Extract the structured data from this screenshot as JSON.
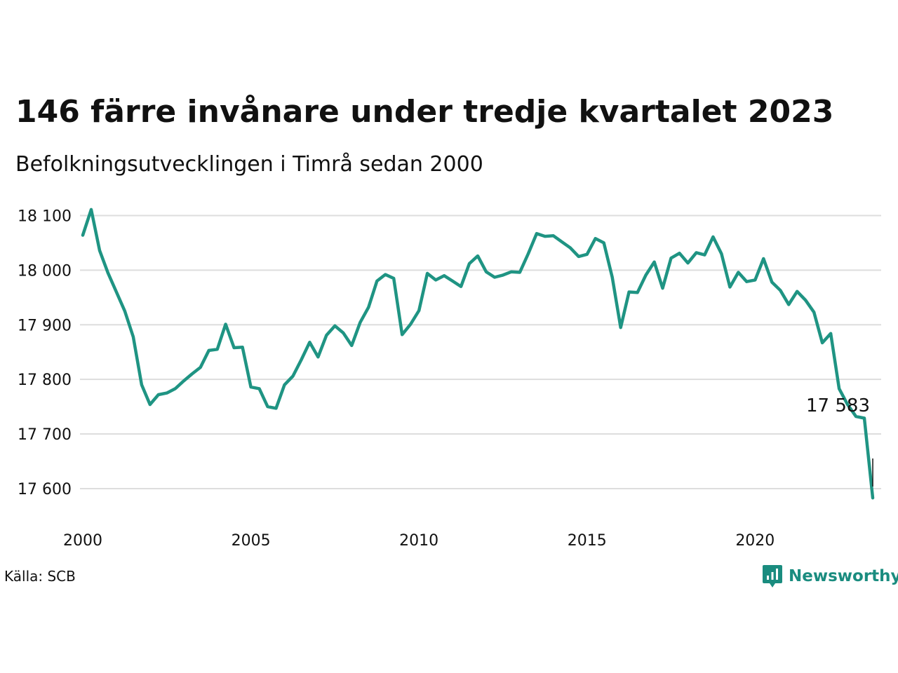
{
  "header": {
    "title": "146 färre invånare under tredje kvartalet 2023",
    "subtitle": "Befolkningsutvecklingen i Timrå sedan 2000"
  },
  "footer": {
    "source": "Källa: SCB",
    "brand": "Newsworthy",
    "brand_icon": "bar-chart-badge-icon"
  },
  "colors": {
    "line": "#1f9483",
    "grid": "#dddddd",
    "brand": "#1a8c7f"
  },
  "chart_data": {
    "type": "line",
    "title": "146 färre invånare under tredje kvartalet 2023",
    "subtitle": "Befolkningsutvecklingen i Timrå sedan 2000",
    "xlabel": "",
    "ylabel": "",
    "x_ticks": [
      "2000",
      "2005",
      "2010",
      "2015",
      "2020"
    ],
    "y_ticks": [
      "17 600",
      "17 700",
      "17 800",
      "17 900",
      "18 000",
      "18 100"
    ],
    "y_tick_values": [
      17600,
      17700,
      17800,
      17900,
      18000,
      18100
    ],
    "xlim": [
      2000,
      2023.75
    ],
    "ylim": [
      17555,
      18125
    ],
    "grid": true,
    "end_label": "17 583",
    "series": [
      {
        "x": [
          "2000-Q1",
          "2000-Q2",
          "2000-Q3",
          "2000-Q4",
          "2001-Q1",
          "2001-Q2",
          "2001-Q3",
          "2001-Q4",
          "2002-Q1",
          "2002-Q2",
          "2002-Q3",
          "2002-Q4",
          "2003-Q1",
          "2003-Q2",
          "2003-Q3",
          "2003-Q4",
          "2004-Q1",
          "2004-Q2",
          "2004-Q3",
          "2004-Q4",
          "2005-Q1",
          "2005-Q2",
          "2005-Q3",
          "2005-Q4",
          "2006-Q1",
          "2006-Q2",
          "2006-Q3",
          "2006-Q4",
          "2007-Q1",
          "2007-Q2",
          "2007-Q3",
          "2007-Q4",
          "2008-Q1",
          "2008-Q2",
          "2008-Q3",
          "2008-Q4",
          "2009-Q1",
          "2009-Q2",
          "2009-Q3",
          "2009-Q4",
          "2010-Q1",
          "2010-Q2",
          "2010-Q3",
          "2010-Q4",
          "2011-Q1",
          "2011-Q2",
          "2011-Q3",
          "2011-Q4",
          "2012-Q1",
          "2012-Q2",
          "2012-Q3",
          "2012-Q4",
          "2013-Q1",
          "2013-Q2",
          "2013-Q3",
          "2013-Q4",
          "2014-Q1",
          "2014-Q2",
          "2014-Q3",
          "2014-Q4",
          "2015-Q1",
          "2015-Q2",
          "2015-Q3",
          "2015-Q4",
          "2016-Q1",
          "2016-Q2",
          "2016-Q3",
          "2016-Q4",
          "2017-Q1",
          "2017-Q2",
          "2017-Q3",
          "2017-Q4",
          "2018-Q1",
          "2018-Q2",
          "2018-Q3",
          "2018-Q4",
          "2019-Q1",
          "2019-Q2",
          "2019-Q3",
          "2019-Q4",
          "2020-Q1",
          "2020-Q2",
          "2020-Q3",
          "2020-Q4",
          "2021-Q1",
          "2021-Q2",
          "2021-Q3",
          "2021-Q4",
          "2022-Q1",
          "2022-Q2",
          "2022-Q3",
          "2022-Q4",
          "2023-Q1",
          "2023-Q2",
          "2023-Q3"
        ],
        "values": [
          18064,
          18111,
          18036,
          17995,
          17960,
          17925,
          17878,
          17790,
          17754,
          17772,
          17775,
          17783,
          17797,
          17810,
          17822,
          17853,
          17855,
          17901,
          17858,
          17859,
          17786,
          17783,
          17750,
          17747,
          17790,
          17806,
          17836,
          17868,
          17841,
          17881,
          17898,
          17885,
          17862,
          17904,
          17932,
          17980,
          17992,
          17985,
          17882,
          17901,
          17926,
          17994,
          17982,
          17990,
          17980,
          17970,
          18012,
          18026,
          17997,
          17987,
          17991,
          17997,
          17996,
          18030,
          18067,
          18062,
          18063,
          18052,
          18041,
          18025,
          18029,
          18058,
          18050,
          17987,
          17895,
          17960,
          17959,
          17991,
          18015,
          17967,
          18022,
          18031,
          18013,
          18032,
          18028,
          18061,
          18030,
          17969,
          17996,
          17979,
          17982,
          18021,
          17978,
          17963,
          17937,
          17961,
          17945,
          17923,
          17867,
          17884,
          17783,
          17754,
          17732,
          17729,
          17583
        ]
      }
    ]
  }
}
